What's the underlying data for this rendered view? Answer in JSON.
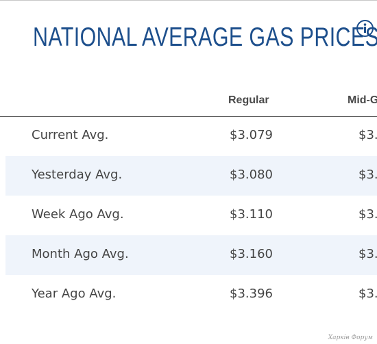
{
  "page": {
    "title": "NATIONAL AVERAGE GAS PRICES",
    "info_icon": "info-circle-icon",
    "accent_color": "#1d4f8c"
  },
  "table": {
    "columns": [
      "Regular",
      "Mid-G"
    ],
    "rows": [
      {
        "label": "Current Avg.",
        "regular": "$3.079",
        "mid": "$3."
      },
      {
        "label": "Yesterday Avg.",
        "regular": "$3.080",
        "mid": "$3."
      },
      {
        "label": "Week Ago Avg.",
        "regular": "$3.110",
        "mid": "$3."
      },
      {
        "label": "Month Ago Avg.",
        "regular": "$3.160",
        "mid": "$3."
      },
      {
        "label": "Year Ago Avg.",
        "regular": "$3.396",
        "mid": "$3."
      }
    ]
  },
  "watermark": "Харків Форум"
}
